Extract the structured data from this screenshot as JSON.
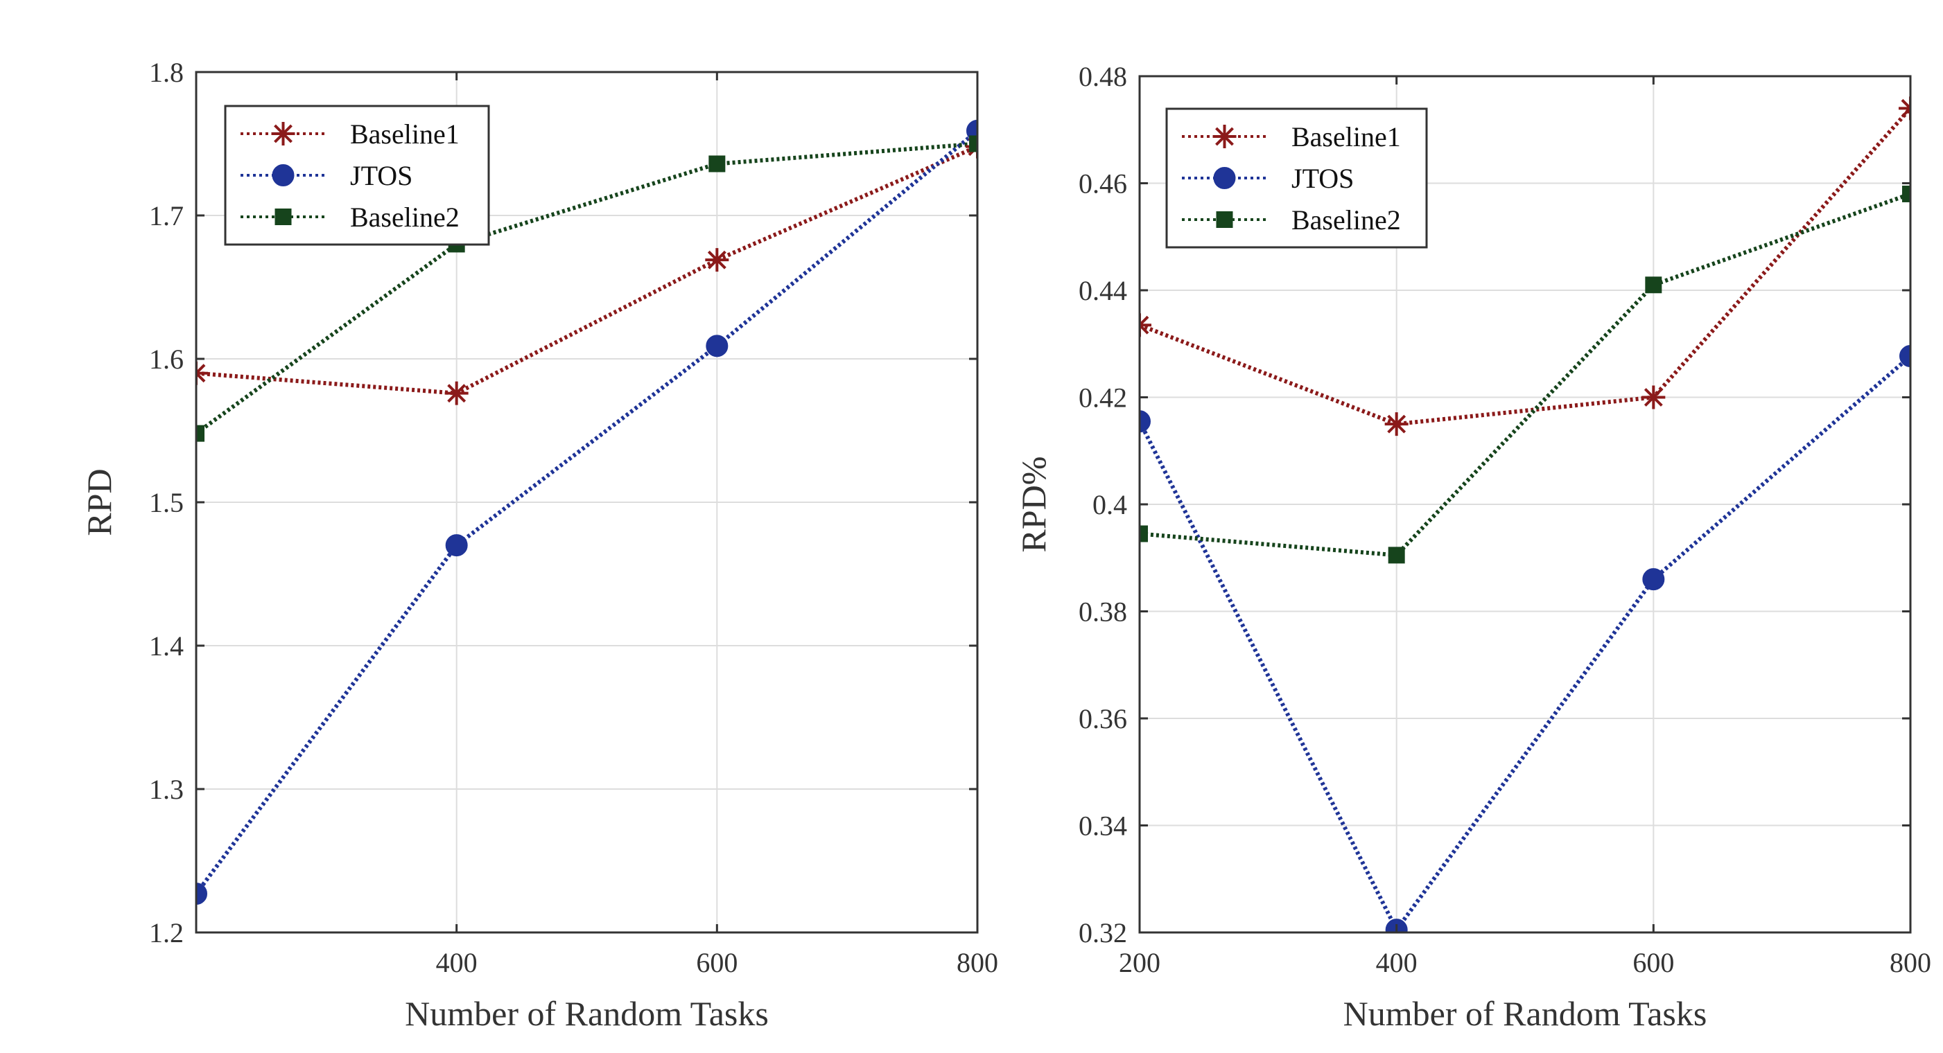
{
  "chart_data": [
    {
      "type": "line",
      "title": "",
      "xlabel": "Number of Random Tasks",
      "ylabel": "RPD",
      "xlim": [
        200,
        800
      ],
      "ylim": [
        1.2,
        1.8
      ],
      "xticks": [
        400,
        600,
        800
      ],
      "xtick_labels": [
        "400",
        "600",
        "800"
      ],
      "yticks": [
        1.2,
        1.3,
        1.4,
        1.5,
        1.6,
        1.7,
        1.8
      ],
      "ytick_labels": [
        "1.2",
        "1.3",
        "1.4",
        "1.5",
        "1.6",
        "1.7",
        "1.8"
      ],
      "grid": true,
      "legend_position": "top-left",
      "x": [
        200,
        400,
        600,
        800
      ],
      "series": [
        {
          "name": "Baseline1",
          "color": "#8b1a1a",
          "marker": "asterisk",
          "values": [
            1.59,
            1.576,
            1.669,
            1.748
          ]
        },
        {
          "name": "JTOS",
          "color": "#1f3497",
          "marker": "circle",
          "values": [
            1.227,
            1.47,
            1.609,
            1.759
          ]
        },
        {
          "name": "Baseline2",
          "color": "#16441c",
          "marker": "square",
          "values": [
            1.548,
            1.68,
            1.736,
            1.75
          ]
        }
      ]
    },
    {
      "type": "line",
      "title": "",
      "xlabel": "Number of Random Tasks",
      "ylabel": "RPD%",
      "xlim": [
        200,
        800
      ],
      "ylim": [
        0.32,
        0.48
      ],
      "xticks": [
        200,
        400,
        600,
        800
      ],
      "xtick_labels": [
        "200",
        "400",
        "600",
        "800"
      ],
      "yticks": [
        0.32,
        0.34,
        0.36,
        0.38,
        0.4,
        0.42,
        0.44,
        0.46,
        0.48
      ],
      "ytick_labels": [
        "0.32",
        "0.34",
        "0.36",
        "0.38",
        "0.4",
        "0.42",
        "0.44",
        "0.46",
        "0.48"
      ],
      "grid": true,
      "legend_position": "top-left",
      "x": [
        200,
        400,
        600,
        800
      ],
      "series": [
        {
          "name": "Baseline1",
          "color": "#8b1a1a",
          "marker": "asterisk",
          "values": [
            0.4335,
            0.415,
            0.42,
            0.474
          ]
        },
        {
          "name": "JTOS",
          "color": "#1f3497",
          "marker": "circle",
          "values": [
            0.4155,
            0.3205,
            0.386,
            0.4277
          ]
        },
        {
          "name": "Baseline2",
          "color": "#16441c",
          "marker": "square",
          "values": [
            0.3945,
            0.3905,
            0.441,
            0.458
          ]
        }
      ]
    }
  ]
}
